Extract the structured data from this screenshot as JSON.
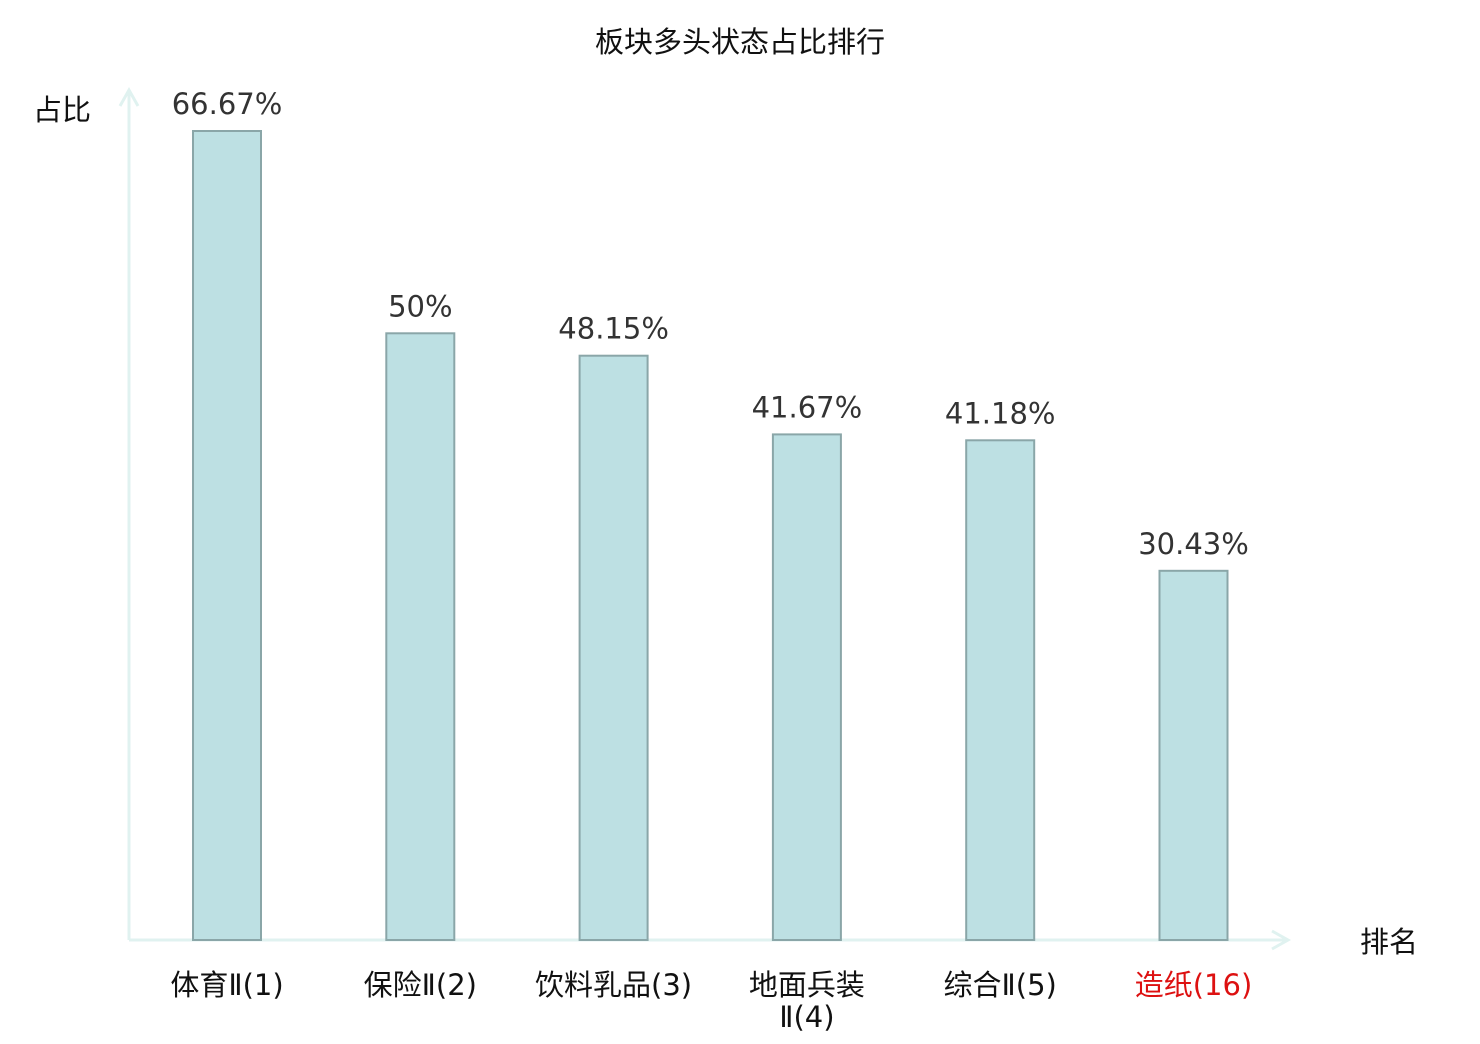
{
  "chart_data": {
    "type": "bar",
    "title": "板块多头状态占比排行",
    "ylabel": "占比",
    "xlabel": "排名",
    "categories": [
      [
        "体育Ⅱ(1)"
      ],
      [
        "保险Ⅱ(2)"
      ],
      [
        "饮料乳品(3)"
      ],
      [
        "地面兵装",
        "Ⅱ(4)"
      ],
      [
        "综合Ⅱ(5)"
      ],
      [
        "造纸(16)"
      ]
    ],
    "values": [
      66.67,
      50,
      48.15,
      41.67,
      41.18,
      30.43
    ],
    "value_labels": [
      "66.67%",
      "50%",
      "48.15%",
      "41.67%",
      "41.18%",
      "30.43%"
    ],
    "highlight_index": 5,
    "ylim": [
      0,
      69
    ],
    "grid": false,
    "colors": {
      "bar_fill": "#bde0e3",
      "bar_stroke": "#8aa6a8",
      "axis": "#e0f2f0",
      "text": "#333333",
      "label": "#111111",
      "highlight": "#dd1111"
    }
  }
}
